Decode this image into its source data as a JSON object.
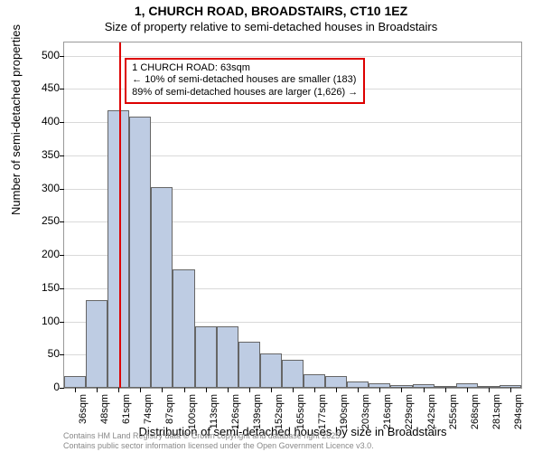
{
  "title_main": "1, CHURCH ROAD, BROADSTAIRS, CT10 1EZ",
  "title_sub": "Size of property relative to semi-detached houses in Broadstairs",
  "ylabel": "Number of semi-detached properties",
  "xlabel": "Distribution of semi-detached houses by size in Broadstairs",
  "attribution_line1": "Contains HM Land Registry data © Crown copyright and database right 2025.",
  "attribution_line2": "Contains public sector information licensed under the Open Government Licence v3.0.",
  "annotation": {
    "line1": "1 CHURCH ROAD: 63sqm",
    "line2": "← 10% of semi-detached houses are smaller (183)",
    "line3": "89% of semi-detached houses are larger (1,626) →"
  },
  "chart": {
    "type": "histogram",
    "ylim": [
      0,
      520
    ],
    "yticks": [
      0,
      50,
      100,
      150,
      200,
      250,
      300,
      350,
      400,
      450,
      500
    ],
    "x_start": 30,
    "x_bin": 13,
    "x_bins_count": 21,
    "x_tick_labels": [
      "36sqm",
      "48sqm",
      "61sqm",
      "74sqm",
      "87sqm",
      "100sqm",
      "113sqm",
      "126sqm",
      "139sqm",
      "152sqm",
      "165sqm",
      "177sqm",
      "190sqm",
      "203sqm",
      "216sqm",
      "229sqm",
      "242sqm",
      "255sqm",
      "268sqm",
      "281sqm",
      "294sqm"
    ],
    "bar_values": [
      18,
      132,
      418,
      408,
      302,
      178,
      93,
      92,
      70,
      52,
      42,
      20,
      18,
      10,
      7,
      4,
      6,
      1,
      7,
      3,
      4
    ],
    "bar_fill": "#becce3",
    "bar_stroke": "#666666",
    "grid_color": "#d9d9d9",
    "marker_x_value": 63,
    "marker_color": "#dd0000",
    "background": "#ffffff"
  }
}
